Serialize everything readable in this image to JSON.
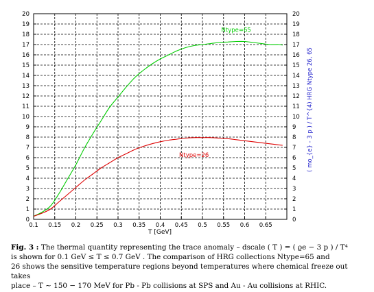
{
  "chart_data": {
    "type": "line",
    "xlabel": "T [GeV]",
    "ylabel_right": "( mo_{e} - 3 p ) / T^{4)  HRG Ntype 26, 65",
    "xlim": [
      0.1,
      0.7
    ],
    "ylim": [
      0,
      20
    ],
    "x_ticks": [
      "0.1",
      "0.15",
      "0.2",
      "0.25",
      "0.3",
      "0.35",
      "0.4",
      "0.45",
      "0.5",
      "0.55",
      "0.6",
      "0.65"
    ],
    "y_ticks": [
      "0",
      "1",
      "2",
      "3",
      "4",
      "5",
      "6",
      "7",
      "8",
      "9",
      "10",
      "11",
      "12",
      "13",
      "14",
      "15",
      "16",
      "17",
      "18",
      "19",
      "20"
    ],
    "grid": true,
    "series": [
      {
        "name": "Ntype=65",
        "color": "#00cc00",
        "x": [
          0.1,
          0.12,
          0.14,
          0.16,
          0.18,
          0.2,
          0.22,
          0.24,
          0.26,
          0.28,
          0.3,
          0.32,
          0.34,
          0.36,
          0.38,
          0.4,
          0.42,
          0.44,
          0.46,
          0.48,
          0.5,
          0.52,
          0.54,
          0.56,
          0.58,
          0.6,
          0.62,
          0.64,
          0.66,
          0.68,
          0.69
        ],
        "y": [
          0.3,
          0.7,
          1.3,
          2.5,
          3.9,
          5.3,
          6.9,
          8.3,
          9.6,
          10.9,
          11.9,
          12.9,
          13.8,
          14.5,
          15.1,
          15.6,
          16.0,
          16.4,
          16.7,
          16.9,
          17.0,
          17.1,
          17.2,
          17.25,
          17.3,
          17.3,
          17.2,
          17.1,
          17.0,
          17.0,
          16.95
        ]
      },
      {
        "name": "Ntype=26",
        "color": "#dd0000",
        "x": [
          0.1,
          0.12,
          0.14,
          0.16,
          0.18,
          0.2,
          0.22,
          0.24,
          0.26,
          0.28,
          0.3,
          0.32,
          0.34,
          0.36,
          0.38,
          0.4,
          0.42,
          0.44,
          0.46,
          0.48,
          0.5,
          0.52,
          0.54,
          0.56,
          0.58,
          0.6,
          0.62,
          0.64,
          0.66,
          0.68,
          0.69
        ],
        "y": [
          0.3,
          0.6,
          1.0,
          1.7,
          2.4,
          3.1,
          3.8,
          4.4,
          5.0,
          5.5,
          6.0,
          6.4,
          6.8,
          7.1,
          7.35,
          7.55,
          7.7,
          7.8,
          7.9,
          7.95,
          7.95,
          7.95,
          7.9,
          7.85,
          7.75,
          7.65,
          7.55,
          7.45,
          7.35,
          7.25,
          7.2
        ]
      }
    ]
  },
  "caption": {
    "label": "Fig. 3 :",
    "line1": "The thermal quantity representing the trace anomaly – dscale ( T ) = ( ϱe − 3 p ) / T⁴",
    "line2": "is shown for  0.1 GeV  ≤  T  ≤  0.7 GeV . The comparison of HRG collections Ntype=65 and",
    "line3": "26 shows the sensitive temperature regions beyond temperatures where chemical freeze out takes",
    "line4": "place –  T  ∼  150  −  170 MeV  for Pb - Pb collisions at SPS and Au - Au collisions at RHIC."
  }
}
